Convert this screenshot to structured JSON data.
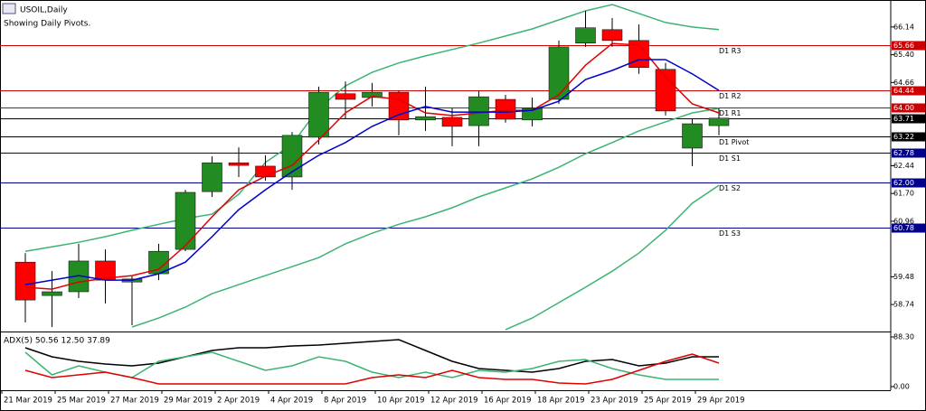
{
  "chart_data": {
    "type": "candlestick",
    "title": "USOIL,Daily",
    "subtitle": "Showing Daily Pivots.",
    "categories": [
      "21 Mar 2019",
      null,
      "25 Mar 2019",
      null,
      "27 Mar 2019",
      null,
      "29 Mar 2019",
      null,
      "2 Apr 2019",
      null,
      "4 Apr 2019",
      null,
      "8 Apr 2019",
      null,
      "10 Apr 2019",
      null,
      "12 Apr 2019",
      null,
      "16 Apr 2019",
      null,
      "18 Apr 2019",
      null,
      "23 Apr 2019",
      null,
      "25 Apr 2019",
      null,
      "29 Apr 2019"
    ],
    "open": [
      59.87,
      58.98,
      59.08,
      59.9,
      59.34,
      59.56,
      60.21,
      61.75,
      62.52,
      62.43,
      62.14,
      63.2,
      64.36,
      64.26,
      64.4,
      63.66,
      63.73,
      63.51,
      64.21,
      63.66,
      64.21,
      65.71,
      66.07,
      65.78,
      65.01,
      62.91,
      63.51
    ],
    "high": [
      60.11,
      59.63,
      60.36,
      60.21,
      59.49,
      60.36,
      61.8,
      62.69,
      62.93,
      62.72,
      63.34,
      64.55,
      64.69,
      64.65,
      64.45,
      64.55,
      63.97,
      64.45,
      64.33,
      64.26,
      65.78,
      66.57,
      66.38,
      66.21,
      65.18,
      63.68,
      63.97
    ],
    "low": [
      58.26,
      58.14,
      58.91,
      58.77,
      58.19,
      59.39,
      60.16,
      61.61,
      62.14,
      62.04,
      61.8,
      63.01,
      63.68,
      64.02,
      63.25,
      63.37,
      62.96,
      62.96,
      63.59,
      63.49,
      64.09,
      65.61,
      65.61,
      64.89,
      63.78,
      62.43,
      63.25
    ],
    "close": [
      58.86,
      59.08,
      59.9,
      59.39,
      59.42,
      60.16,
      61.73,
      62.52,
      62.45,
      62.14,
      63.25,
      64.4,
      64.21,
      64.4,
      63.66,
      63.75,
      63.49,
      64.28,
      63.68,
      63.97,
      65.61,
      66.12,
      65.78,
      65.06,
      63.9,
      63.56,
      63.71
    ],
    "up_color": "#228b22",
    "down_color": "#ff0000",
    "ylim": [
      58.02,
      66.86
    ],
    "yticks": [
      66.14,
      {
        "value": 65.4,
        "label": "65.40"
      },
      64.66,
      62.44,
      {
        "value": 61.7,
        "label": "61.70"
      },
      60.96,
      59.48,
      58.74
    ],
    "series": [
      {
        "name": "upper band",
        "color": "#3cb371",
        "values": [
          60.16,
          60.28,
          60.4,
          60.55,
          60.72,
          60.88,
          61.03,
          61.15,
          61.68,
          62.53,
          63.01,
          63.97,
          64.57,
          64.93,
          65.18,
          65.37,
          65.54,
          65.71,
          65.9,
          66.09,
          66.33,
          66.57,
          66.74,
          66.5,
          66.26,
          66.14,
          66.07
        ]
      },
      {
        "name": "middle band",
        "color": "#3cb371",
        "values": [
          null,
          null,
          null,
          null,
          58.14,
          58.38,
          58.67,
          59.03,
          59.27,
          59.51,
          59.75,
          59.99,
          60.36,
          60.64,
          60.88,
          61.08,
          61.32,
          61.61,
          61.85,
          62.09,
          62.4,
          62.76,
          63.06,
          63.37,
          63.61,
          63.85,
          63.97
        ]
      },
      {
        "name": "lower band",
        "color": "#3cb371",
        "values": [
          null,
          null,
          null,
          null,
          null,
          null,
          null,
          null,
          null,
          null,
          null,
          null,
          null,
          null,
          null,
          null,
          null,
          null,
          58.07,
          58.38,
          58.79,
          59.2,
          59.63,
          60.11,
          60.72,
          61.44,
          61.92
        ]
      },
      {
        "name": "fast ma",
        "color": "#e00000",
        "values": [
          59.2,
          59.15,
          59.34,
          59.44,
          59.51,
          59.68,
          60.31,
          61.08,
          61.8,
          62.16,
          62.45,
          63.13,
          63.85,
          64.29,
          64.21,
          63.85,
          63.78,
          63.85,
          63.92,
          63.92,
          64.33,
          65.12,
          65.7,
          65.66,
          64.81,
          64.09,
          63.85
        ]
      },
      {
        "name": "slow ma",
        "color": "#0000cd",
        "values": [
          59.27,
          59.39,
          59.51,
          59.39,
          59.39,
          59.56,
          59.87,
          60.55,
          61.27,
          61.8,
          62.28,
          62.72,
          63.06,
          63.49,
          63.8,
          64.02,
          63.87,
          63.87,
          63.87,
          63.92,
          64.16,
          64.74,
          64.98,
          65.27,
          65.27,
          64.89,
          64.45
        ]
      }
    ],
    "levels": [
      {
        "name": "D1 R3",
        "value": 65.66,
        "color": "#cc0000"
      },
      {
        "name": "D1 R2",
        "value": 64.44,
        "color": "#cc0000"
      },
      {
        "name": "D1 R1",
        "value": 64.0,
        "label": "64.00",
        "color": "#cc0000"
      },
      {
        "name": "D1 Pivot",
        "value": 63.22,
        "color": "#000000"
      },
      {
        "name": "D1 S1",
        "value": 62.78,
        "color": "#00008b"
      },
      {
        "name": "D1 S2",
        "value": 62.0,
        "label": "62.00",
        "color": "#00008b"
      },
      {
        "name": "D1 S3",
        "value": 60.78,
        "color": "#00008b"
      }
    ],
    "last_price": {
      "value": 63.71,
      "color": "#000000"
    },
    "indicator": {
      "title": "ADX(5) 50.56 12.50 37.89",
      "ylim": [
        -6.4,
        96.3
      ],
      "yticks": [
        {
          "value": 88.3,
          "label": "88.30"
        },
        {
          "value": 0,
          "label": "0.00"
        }
      ],
      "series": [
        {
          "name": "ADX",
          "color": "#000000",
          "values": [
            69.0,
            53.0,
            44.9,
            40.1,
            36.9,
            41.7,
            53.0,
            64.2,
            69.0,
            69.0,
            72.2,
            73.8,
            77.0,
            80.3,
            83.5,
            64.2,
            44.9,
            32.1,
            28.9,
            25.7,
            32.1,
            44.9,
            48.2,
            36.9,
            41.7,
            53.0,
            53.0
          ]
        },
        {
          "name": "+DI",
          "color": "#3cb371",
          "values": [
            61.0,
            20.9,
            36.9,
            25.7,
            16.1,
            44.9,
            53.0,
            61.0,
            44.9,
            28.9,
            36.9,
            53.0,
            44.9,
            25.7,
            16.1,
            25.7,
            16.1,
            28.9,
            25.7,
            32.1,
            44.9,
            48.2,
            32.1,
            20.9,
            12.8,
            12.8,
            12.8
          ]
        },
        {
          "name": "-DI",
          "color": "#e00000",
          "values": [
            28.9,
            16.1,
            20.9,
            25.7,
            16.1,
            4.8,
            4.8,
            4.8,
            4.8,
            4.8,
            4.8,
            4.8,
            4.8,
            16.1,
            20.9,
            16.1,
            28.9,
            16.1,
            12.8,
            12.8,
            6.4,
            4.8,
            12.8,
            28.9,
            44.9,
            57.8,
            41.7
          ]
        }
      ]
    }
  }
}
